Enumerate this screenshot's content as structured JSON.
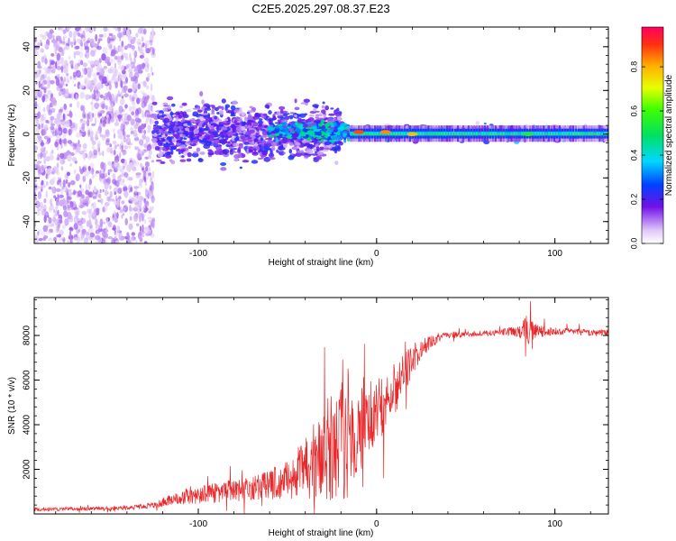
{
  "figure_title": "C2E5.2025.297.08.37.E23",
  "chart_data": [
    {
      "type": "heatmap",
      "title": "C2E5.2025.297.08.37.E23",
      "xlabel": "Height of straight line (km)",
      "ylabel": "Frequency (Hz)",
      "xlim": [
        -192,
        130
      ],
      "ylim": [
        -50,
        49
      ],
      "x_ticks": [
        -100,
        0,
        100
      ],
      "y_ticks": [
        -40,
        -20,
        0,
        20,
        40
      ],
      "x_tick_labels": [
        "-100",
        "0",
        "100"
      ],
      "y_tick_labels": [
        "-40",
        "-20",
        "0",
        "20",
        "40"
      ],
      "colorbar": {
        "label": "Normalized spectral amplitude",
        "range": [
          0,
          0.98
        ],
        "ticks": [
          0.0,
          0.2,
          0.4,
          0.6,
          0.8
        ],
        "tick_labels": [
          "0.0",
          "0.2",
          "0.4",
          "0.6",
          "0.8"
        ]
      },
      "regions": [
        {
          "x_range": [
            -192,
            -125
          ],
          "freq_range": [
            -50,
            49
          ],
          "amplitude": 0.08,
          "note": "scattered noise"
        },
        {
          "x_range": [
            -125,
            -20
          ],
          "freq_range": [
            -12,
            14
          ],
          "amplitude": 0.15
        },
        {
          "x_range": [
            -60,
            -15
          ],
          "freq_range": [
            -3,
            5
          ],
          "amplitude": 0.3
        },
        {
          "x_range": [
            -15,
            130
          ],
          "freq_range": [
            -3,
            4
          ],
          "amplitude": 0.55,
          "note": "narrow band near 0 Hz"
        }
      ],
      "peaks": [
        {
          "x": -10,
          "freq": 1,
          "amplitude": 0.9
        },
        {
          "x": 5,
          "freq": 1,
          "amplitude": 0.85
        },
        {
          "x": 20,
          "freq": 0,
          "amplitude": 0.8
        },
        {
          "x": 85,
          "freq": 0,
          "amplitude": 0.55
        }
      ],
      "colors": {
        "low": "#e8d6fa",
        "mid": "#7020e0",
        "high": "#f01030"
      }
    },
    {
      "type": "line",
      "xlabel": "Height of straight line (km)",
      "ylabel": "SNR (10 * v/v)",
      "xlim": [
        -192,
        130
      ],
      "ylim": [
        0,
        9700
      ],
      "x_ticks": [
        -100,
        0,
        100
      ],
      "y_ticks": [
        2000,
        4000,
        6000,
        8000
      ],
      "x_tick_labels": [
        "-100",
        "0",
        "100"
      ],
      "y_tick_labels": [
        "2000",
        "4000",
        "6000",
        "8000"
      ],
      "line_color": "#e8282a",
      "series": [
        {
          "name": "SNR",
          "x": [
            -192,
            -170,
            -150,
            -135,
            -125,
            -115,
            -100,
            -90,
            -80,
            -70,
            -60,
            -50,
            -40,
            -35,
            -30,
            -25,
            -20,
            -15,
            -12,
            -10,
            -5,
            0,
            5,
            10,
            15,
            20,
            25,
            30,
            35,
            40,
            50,
            60,
            70,
            80,
            85,
            90,
            100,
            110,
            120,
            130
          ],
          "y": [
            200,
            220,
            250,
            300,
            400,
            650,
            850,
            950,
            1050,
            1150,
            1350,
            1550,
            2000,
            2300,
            2700,
            3000,
            3400,
            3700,
            2400,
            3800,
            4200,
            4600,
            5100,
            5600,
            6300,
            6900,
            7400,
            7700,
            7900,
            8000,
            8050,
            8100,
            8150,
            8200,
            8300,
            8200,
            8150,
            8200,
            8100,
            8150
          ],
          "noise_amplitude": [
            80,
            80,
            90,
            100,
            150,
            250,
            400,
            450,
            500,
            550,
            700,
            900,
            1400,
            1800,
            2200,
            2600,
            2800,
            3000,
            1500,
            2000,
            1800,
            1600,
            1400,
            1200,
            1000,
            700,
            450,
            300,
            200,
            150,
            120,
            120,
            140,
            300,
            700,
            300,
            150,
            150,
            150,
            150
          ]
        }
      ]
    }
  ]
}
